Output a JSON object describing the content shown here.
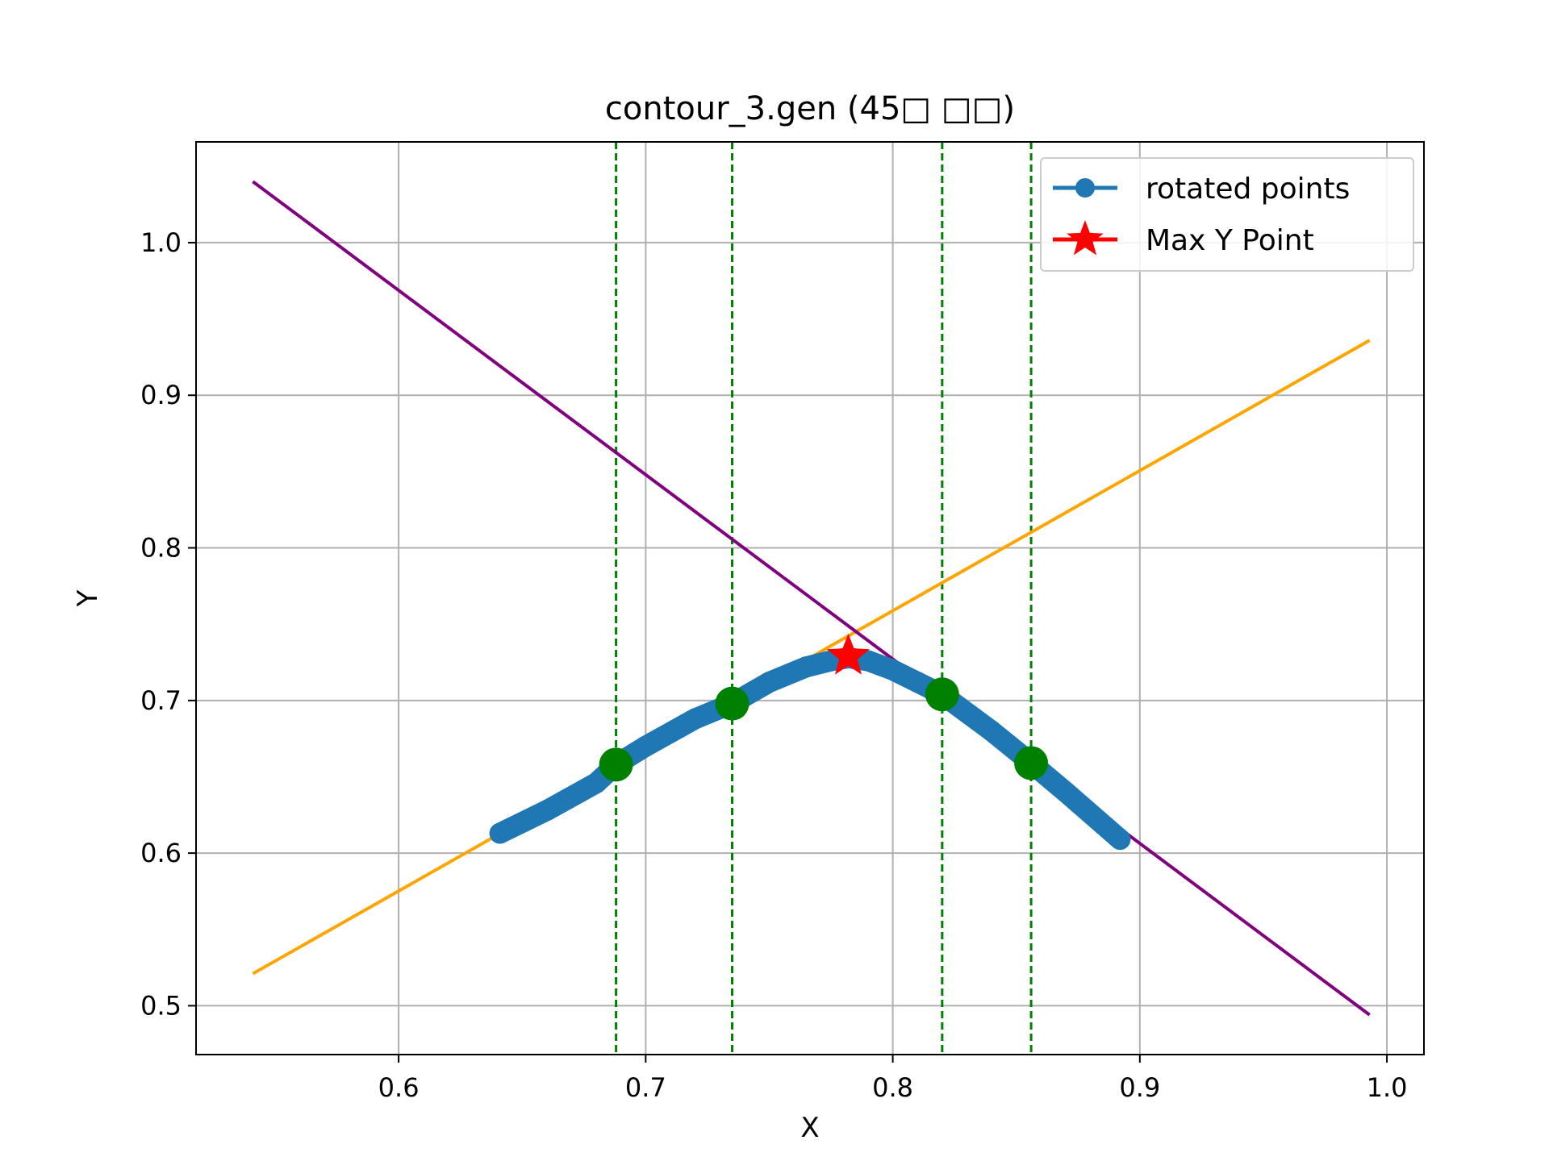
{
  "chart_data": {
    "type": "line",
    "title": "contour_3.gen (45□ □□)",
    "xlabel": "X",
    "ylabel": "Y",
    "xlim": [
      0.518,
      1.015
    ],
    "ylim": [
      0.468,
      1.066
    ],
    "xticks": [
      0.6,
      0.7,
      0.8,
      0.9,
      1.0
    ],
    "yticks": [
      0.5,
      0.6,
      0.7,
      0.8,
      0.9,
      1.0
    ],
    "grid": true,
    "legend_position": "top-right",
    "colors": {
      "rotated": "#1f77b4",
      "max": "#ff0000",
      "marker": "#008000",
      "line_up": "#ffa500",
      "line_down": "#800080",
      "vline": "#008000",
      "grid": "#b0b0b0"
    },
    "series": [
      {
        "name": "rotated points",
        "x": [
          0.641,
          0.66,
          0.68,
          0.688,
          0.7,
          0.72,
          0.735,
          0.75,
          0.765,
          0.775,
          0.782,
          0.79,
          0.8,
          0.81,
          0.82,
          0.84,
          0.856,
          0.87,
          0.892
        ],
        "y": [
          0.613,
          0.628,
          0.646,
          0.658,
          0.67,
          0.688,
          0.698,
          0.712,
          0.722,
          0.726,
          0.728,
          0.726,
          0.72,
          0.712,
          0.704,
          0.68,
          0.659,
          0.64,
          0.609
        ]
      },
      {
        "name": "Max Y Point",
        "x": [
          0.782
        ],
        "y": [
          0.729
        ]
      }
    ],
    "markers": {
      "x": [
        0.688,
        0.735,
        0.82,
        0.856
      ],
      "y": [
        0.658,
        0.698,
        0.704,
        0.659
      ]
    },
    "lines": [
      {
        "x": [
          0.541,
          0.993
        ],
        "y": [
          0.521,
          0.936
        ]
      },
      {
        "x": [
          0.541,
          0.993
        ],
        "y": [
          1.04,
          0.494
        ]
      }
    ],
    "vlines": [
      0.688,
      0.735,
      0.82,
      0.856
    ]
  }
}
